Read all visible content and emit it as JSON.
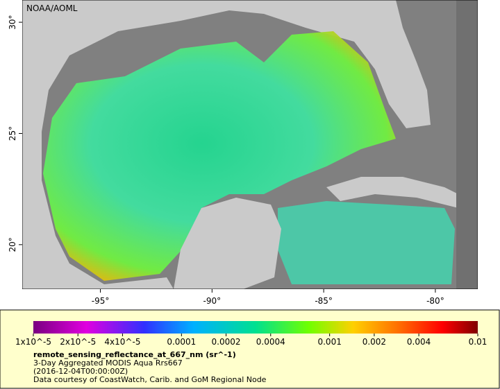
{
  "map": {
    "credit": "NOAA/AOML",
    "lon_lim": [
      -98.5,
      -78.1
    ],
    "lat_lim": [
      18,
      31
    ],
    "lon_ticks": [
      {
        "value": -95,
        "label": "-95°"
      },
      {
        "value": -90,
        "label": "-90°"
      },
      {
        "value": -85,
        "label": "-85°"
      },
      {
        "value": -80,
        "label": "-80°"
      }
    ],
    "lat_ticks": [
      {
        "value": 30,
        "label": "30°"
      },
      {
        "value": 25,
        "label": "25°"
      },
      {
        "value": 20,
        "label": "20°"
      }
    ]
  },
  "legend": {
    "scale": "log",
    "lim": [
      1e-05,
      0.01
    ],
    "ticks": [
      {
        "value": 1e-05,
        "label": "1x10^-5"
      },
      {
        "value": 2e-05,
        "label": "2x10^-5"
      },
      {
        "value": 4e-05,
        "label": "4x10^-5"
      },
      0.0001,
      0.0002,
      0.0004,
      0.001,
      0.002,
      0.004,
      0.01
    ],
    "variable": "remote_sensing_reflectance_at_667_nm (sr^-1)",
    "description": "3-Day Aggregated MODIS Aqua Rrs667",
    "time": "(2016-12-04T00:00:00Z)",
    "source": "Data courtesy of CoastWatch, Carib. and GoM Regional Node"
  }
}
